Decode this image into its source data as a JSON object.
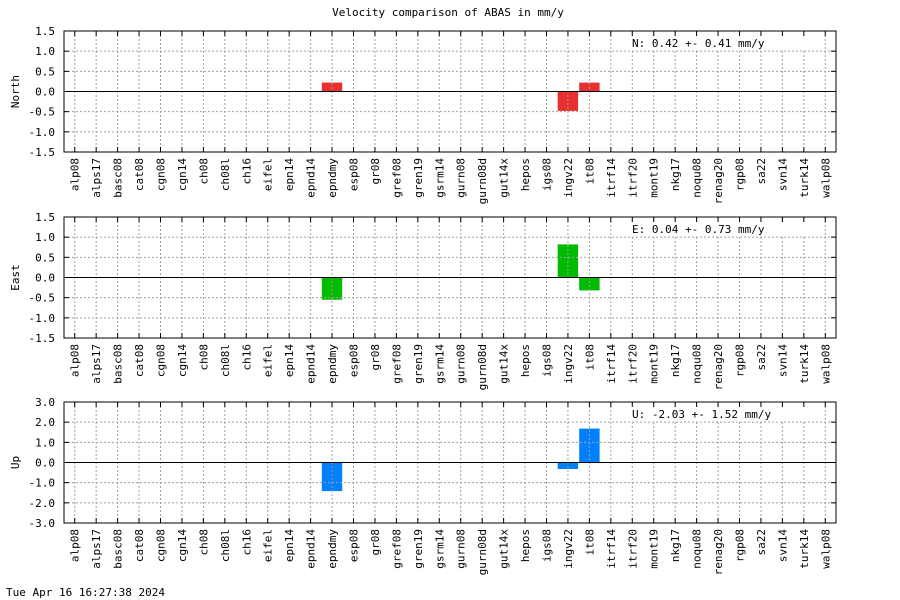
{
  "title": "Velocity comparison of ABAS in mm/y",
  "footer": "Tue Apr 16 16:27:38 2024",
  "colors": {
    "North": "#e83030",
    "East": "#00bb00",
    "Up": "#0080ff"
  },
  "chart_data": [
    {
      "type": "bar",
      "ylabel": "North",
      "ylim": [
        -1.5,
        1.5
      ],
      "yticks": [
        "1.5",
        "1.0",
        "0.5",
        "0.0",
        "-0.5",
        "-1.0",
        "-1.5"
      ],
      "ytick_values": [
        1.5,
        1.0,
        0.5,
        0.0,
        -0.5,
        -1.0,
        -1.5
      ],
      "grid": true,
      "annotation": "N:   0.42 +-  0.41 mm/y",
      "categories": [
        "alp08",
        "alps17",
        "basc08",
        "cat08",
        "cgn08",
        "cgn14",
        "ch08",
        "ch08l",
        "ch16",
        "eifel",
        "epn14",
        "epnd14",
        "epndmy",
        "esp08",
        "gr08",
        "gref08",
        "gren19",
        "gsrm14",
        "gurn08",
        "gurn08d",
        "gut14x",
        "hepos",
        "igs08",
        "ingv22",
        "it08",
        "itrf14",
        "itrf20",
        "mont19",
        "nkg17",
        "noqu08",
        "renag20",
        "rgp08",
        "sa22",
        "svn14",
        "turk14",
        "walp08"
      ],
      "values": [
        null,
        null,
        null,
        null,
        null,
        null,
        null,
        null,
        null,
        null,
        null,
        null,
        0.22,
        null,
        null,
        null,
        null,
        null,
        null,
        null,
        null,
        null,
        null,
        -0.48,
        0.22,
        null,
        null,
        null,
        null,
        null,
        null,
        null,
        null,
        null,
        null,
        null
      ]
    },
    {
      "type": "bar",
      "ylabel": "East",
      "ylim": [
        -1.5,
        1.5
      ],
      "yticks": [
        "1.5",
        "1.0",
        "0.5",
        "0.0",
        "-0.5",
        "-1.0",
        "-1.5"
      ],
      "ytick_values": [
        1.5,
        1.0,
        0.5,
        0.0,
        -0.5,
        -1.0,
        -1.5
      ],
      "grid": true,
      "annotation": "E:   0.04 +-  0.73 mm/y",
      "categories": [
        "alp08",
        "alps17",
        "basc08",
        "cat08",
        "cgn08",
        "cgn14",
        "ch08",
        "ch08l",
        "ch16",
        "eifel",
        "epn14",
        "epnd14",
        "epndmy",
        "esp08",
        "gr08",
        "gref08",
        "gren19",
        "gsrm14",
        "gurn08",
        "gurn08d",
        "gut14x",
        "hepos",
        "igs08",
        "ingv22",
        "it08",
        "itrf14",
        "itrf20",
        "mont19",
        "nkg17",
        "noqu08",
        "renag20",
        "rgp08",
        "sa22",
        "svn14",
        "turk14",
        "walp08"
      ],
      "values": [
        null,
        null,
        null,
        null,
        null,
        null,
        null,
        null,
        null,
        null,
        null,
        null,
        -0.55,
        null,
        null,
        null,
        null,
        null,
        null,
        null,
        null,
        null,
        null,
        0.82,
        -0.32,
        null,
        null,
        null,
        null,
        null,
        null,
        null,
        null,
        null,
        null,
        null
      ]
    },
    {
      "type": "bar",
      "ylabel": "Up",
      "ylim": [
        -3.0,
        3.0
      ],
      "yticks": [
        "3.0",
        "2.0",
        "1.0",
        "0.0",
        "-1.0",
        "-2.0",
        "-3.0"
      ],
      "ytick_values": [
        3.0,
        2.0,
        1.0,
        0.0,
        -1.0,
        -2.0,
        -3.0
      ],
      "grid": true,
      "annotation": "U:  -2.03 +-  1.52 mm/y",
      "categories": [
        "alp08",
        "alps17",
        "basc08",
        "cat08",
        "cgn08",
        "cgn14",
        "ch08",
        "ch08l",
        "ch16",
        "eifel",
        "epn14",
        "epnd14",
        "epndmy",
        "esp08",
        "gr08",
        "gref08",
        "gren19",
        "gsrm14",
        "gurn08",
        "gurn08d",
        "gut14x",
        "hepos",
        "igs08",
        "ingv22",
        "it08",
        "itrf14",
        "itrf20",
        "mont19",
        "nkg17",
        "noqu08",
        "renag20",
        "rgp08",
        "sa22",
        "svn14",
        "turk14",
        "walp08"
      ],
      "values": [
        null,
        null,
        null,
        null,
        null,
        null,
        null,
        null,
        null,
        null,
        null,
        null,
        -1.42,
        null,
        null,
        null,
        null,
        null,
        null,
        null,
        null,
        null,
        null,
        -0.32,
        1.68,
        null,
        null,
        null,
        null,
        null,
        null,
        null,
        null,
        null,
        null,
        null
      ]
    }
  ]
}
